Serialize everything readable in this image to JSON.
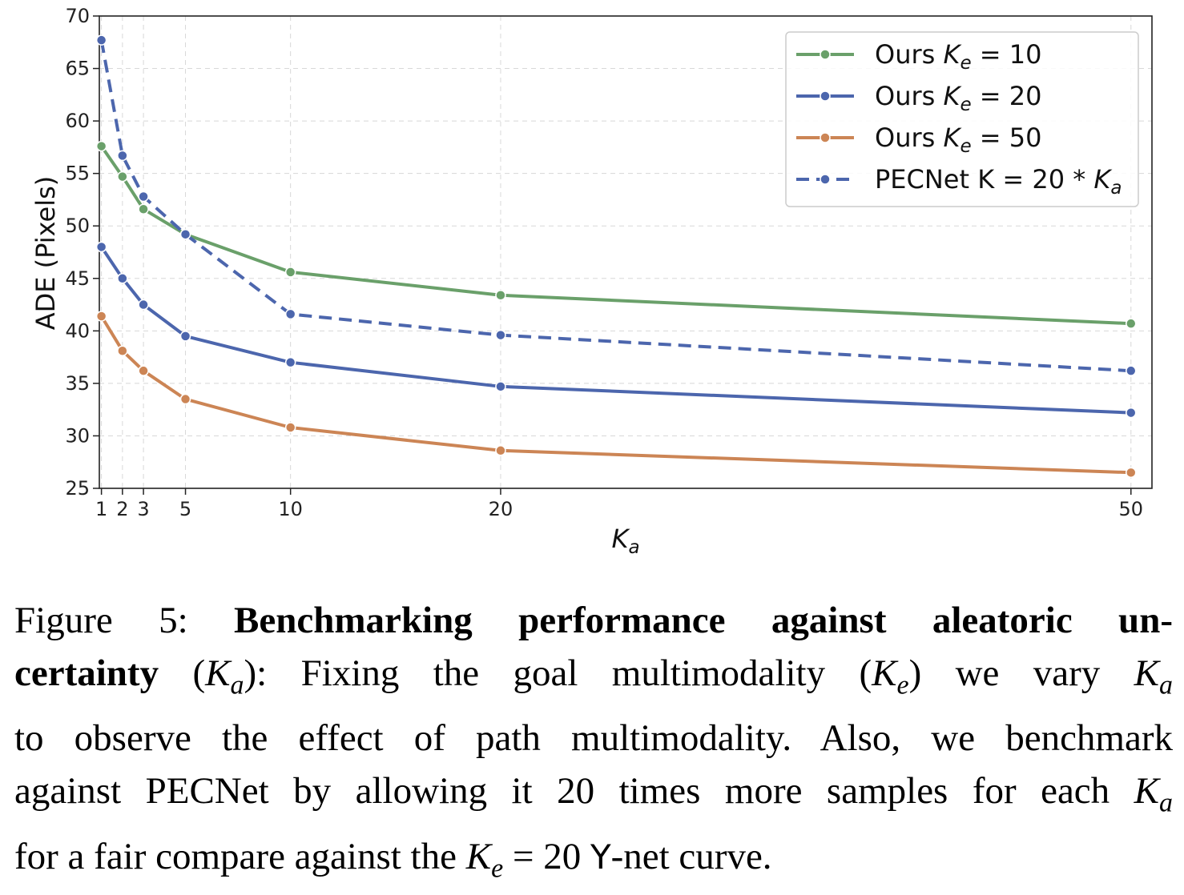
{
  "chart_data": {
    "type": "line",
    "xlabel": "K_a",
    "ylabel": "ADE (Pixels)",
    "x": [
      1,
      2,
      3,
      5,
      10,
      20,
      50
    ],
    "x_tick_labels": [
      "1",
      "2",
      "3",
      "5",
      "10",
      "20",
      "50"
    ],
    "ylim": [
      25,
      70
    ],
    "y_ticks": [
      25,
      30,
      35,
      40,
      45,
      50,
      55,
      60,
      65,
      70
    ],
    "y_tick_labels": [
      "25",
      "30",
      "35",
      "40",
      "45",
      "50",
      "55",
      "60",
      "65",
      "70"
    ],
    "grid": true,
    "legend_position": "top-right",
    "series": [
      {
        "name": "Ours K_e = 10",
        "color": "#6aa06a",
        "style": "solid",
        "values": [
          57.6,
          54.7,
          51.6,
          49.2,
          45.6,
          43.4,
          40.7
        ]
      },
      {
        "name": "Ours K_e = 20",
        "color": "#4c66ad",
        "style": "solid",
        "values": [
          48.0,
          45.0,
          42.5,
          39.5,
          37.0,
          34.7,
          32.2
        ]
      },
      {
        "name": "Ours K_e = 50",
        "color": "#cc8555",
        "style": "solid",
        "values": [
          41.4,
          38.1,
          36.2,
          33.5,
          30.8,
          28.6,
          26.5
        ]
      },
      {
        "name": "PECNet K = 20 * K_a",
        "color": "#4c66ad",
        "style": "dashed",
        "values": [
          67.7,
          56.7,
          52.8,
          49.2,
          41.6,
          39.6,
          36.2
        ]
      }
    ]
  },
  "caption": {
    "figure_label": "Figure 5:",
    "bold_title": "Benchmarking performance against aleatoric uncertainty",
    "lines": [
      {
        "segments": [
          {
            "t": "Figure 5:  ",
            "s": "n"
          },
          {
            "t": "Benchmarking performance against aleatoric un-",
            "s": "b"
          }
        ]
      },
      {
        "segments": [
          {
            "t": "certainty",
            "s": "b"
          },
          {
            "t": " (",
            "s": "n"
          },
          {
            "t": "K",
            "s": "i"
          },
          {
            "t": "a",
            "s": "sub"
          },
          {
            "t": "): Fixing the goal multimodality (",
            "s": "n"
          },
          {
            "t": "K",
            "s": "i"
          },
          {
            "t": "e",
            "s": "sub"
          },
          {
            "t": ") we vary ",
            "s": "n"
          },
          {
            "t": "K",
            "s": "i"
          },
          {
            "t": "a",
            "s": "sub"
          }
        ]
      },
      {
        "segments": [
          {
            "t": "to observe the effect of path multimodality.  Also, we benchmark",
            "s": "n"
          }
        ]
      },
      {
        "segments": [
          {
            "t": "against PECNet by allowing it 20 times more samples for each ",
            "s": "n"
          },
          {
            "t": "K",
            "s": "i"
          },
          {
            "t": "a",
            "s": "sub"
          }
        ]
      },
      {
        "segments": [
          {
            "t": "for a fair compare against the ",
            "s": "n"
          },
          {
            "t": "K",
            "s": "i"
          },
          {
            "t": "e",
            "s": "sub"
          },
          {
            "t": " = 20 ",
            "s": "n"
          },
          {
            "t": "Y",
            "s": "sans"
          },
          {
            "t": "-net curve.",
            "s": "n"
          }
        ]
      }
    ]
  }
}
